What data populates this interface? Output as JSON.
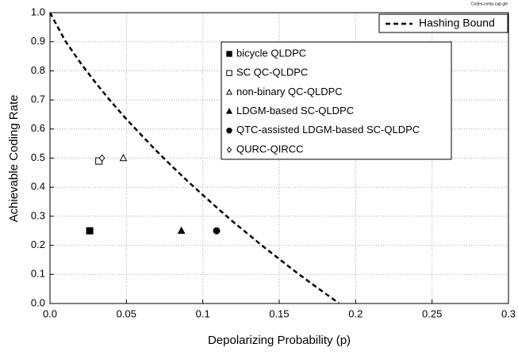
{
  "chart_data": {
    "type": "scatter",
    "annotation": "Codes-comp-cap.gle",
    "x_label": "Depolarizing Probability (p)",
    "y_label": "Achievable Coding Rate",
    "xlim": [
      0,
      0.3
    ],
    "ylim": [
      0,
      1
    ],
    "xticks": [
      {
        "value": 0,
        "label": "0.0"
      },
      0.05,
      0.1,
      0.15,
      0.2,
      0.25,
      0.3
    ],
    "yticks": [
      {
        "value": 0,
        "label": "0.0"
      },
      0.1,
      0.2,
      0.3,
      0.4,
      0.5,
      0.6,
      0.7,
      0.8,
      0.9,
      {
        "value": 1,
        "label": "1.0"
      }
    ],
    "grid": true,
    "series": [
      {
        "name": "Hashing Bound",
        "line": "dashed",
        "color": "#000000",
        "x": [
          0,
          0.01,
          0.02,
          0.03,
          0.04,
          0.05,
          0.06,
          0.07,
          0.08,
          0.09,
          0.1,
          0.11,
          0.12,
          0.13,
          0.14,
          0.15,
          0.16,
          0.17,
          0.18,
          0.189
        ],
        "values": [
          1,
          0.903,
          0.827,
          0.758,
          0.694,
          0.634,
          0.578,
          0.523,
          0.471,
          0.421,
          0.373,
          0.326,
          0.28,
          0.237,
          0.194,
          0.153,
          0.112,
          0.073,
          0.035,
          0.001
        ]
      },
      {
        "name": "bicycle QLDPC",
        "marker": "square",
        "filled": true,
        "color": "#000000",
        "x": [
          0.026
        ],
        "values": [
          0.25
        ]
      },
      {
        "name": "SC QC-QLDPC",
        "marker": "square",
        "filled": false,
        "color": "#000000",
        "x": [
          0.032
        ],
        "values": [
          0.49
        ]
      },
      {
        "name": "non-binary QC-QLDPC",
        "marker": "triangle",
        "filled": false,
        "color": "#000000",
        "x": [
          0.048
        ],
        "values": [
          0.5
        ]
      },
      {
        "name": "LDGM-based SC-QLDPC",
        "marker": "triangle",
        "filled": true,
        "color": "#000000",
        "x": [
          0.086
        ],
        "values": [
          0.25
        ]
      },
      {
        "name": "QTC-assisted LDGM-based SC-QLDPC",
        "marker": "circle",
        "filled": true,
        "color": "#000000",
        "x": [
          0.109
        ],
        "values": [
          0.25
        ]
      },
      {
        "name": "QURC-QIRCC",
        "marker": "diamond",
        "filled": false,
        "color": "#000000",
        "x": [
          0.034
        ],
        "values": [
          0.5
        ]
      }
    ]
  }
}
